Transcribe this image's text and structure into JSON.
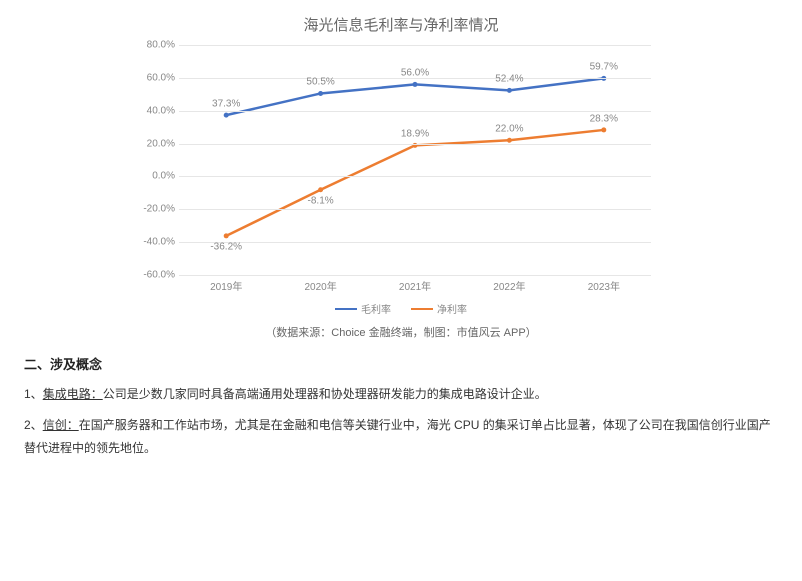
{
  "chart": {
    "type": "line",
    "title": "海光信息毛利率与净利率情况",
    "title_fontsize": 15,
    "title_color": "#666666",
    "background_color": "#ffffff",
    "grid_color": "#e6e6e6",
    "axis_label_color": "#888888",
    "label_fontsize": 10,
    "ylim": [
      -60,
      80
    ],
    "yticks": [
      -60,
      -40,
      -20,
      0,
      20,
      40,
      60,
      80
    ],
    "ytick_labels": [
      "-60.0%",
      "-40.0%",
      "-20.0%",
      "0.0%",
      "20.0%",
      "40.0%",
      "60.0%",
      "80.0%"
    ],
    "categories": [
      "2019年",
      "2020年",
      "2021年",
      "2022年",
      "2023年"
    ],
    "series": [
      {
        "name": "毛利率",
        "color": "#4472c4",
        "line_width": 2.5,
        "marker": "circle",
        "marker_size": 5,
        "values": [
          37.3,
          50.5,
          56.0,
          52.4,
          59.7
        ],
        "value_labels": [
          "37.3%",
          "50.5%",
          "56.0%",
          "52.4%",
          "59.7%"
        ]
      },
      {
        "name": "净利率",
        "color": "#ed7d31",
        "line_width": 2.5,
        "marker": "circle",
        "marker_size": 5,
        "values": [
          -36.2,
          -8.1,
          18.9,
          22.0,
          28.3
        ],
        "value_labels": [
          "-36.2%",
          "-8.1%",
          "18.9%",
          "22.0%",
          "28.3%"
        ]
      }
    ],
    "legend_position": "bottom-center"
  },
  "caption": "（数据来源：Choice 金融终端，制图：市值风云 APP）",
  "section": {
    "heading": "二、涉及概念",
    "items": [
      {
        "prefix": "1、",
        "label": "集成电路：",
        "text": "公司是少数几家同时具备高端通用处理器和协处理器研发能力的集成电路设计企业。"
      },
      {
        "prefix": "2、",
        "label": "信创：",
        "text": "在国产服务器和工作站市场，尤其是在金融和电信等关键行业中，海光 CPU 的集采订单占比显著，体现了公司在我国信创行业国产替代进程中的领先地位。"
      }
    ]
  }
}
